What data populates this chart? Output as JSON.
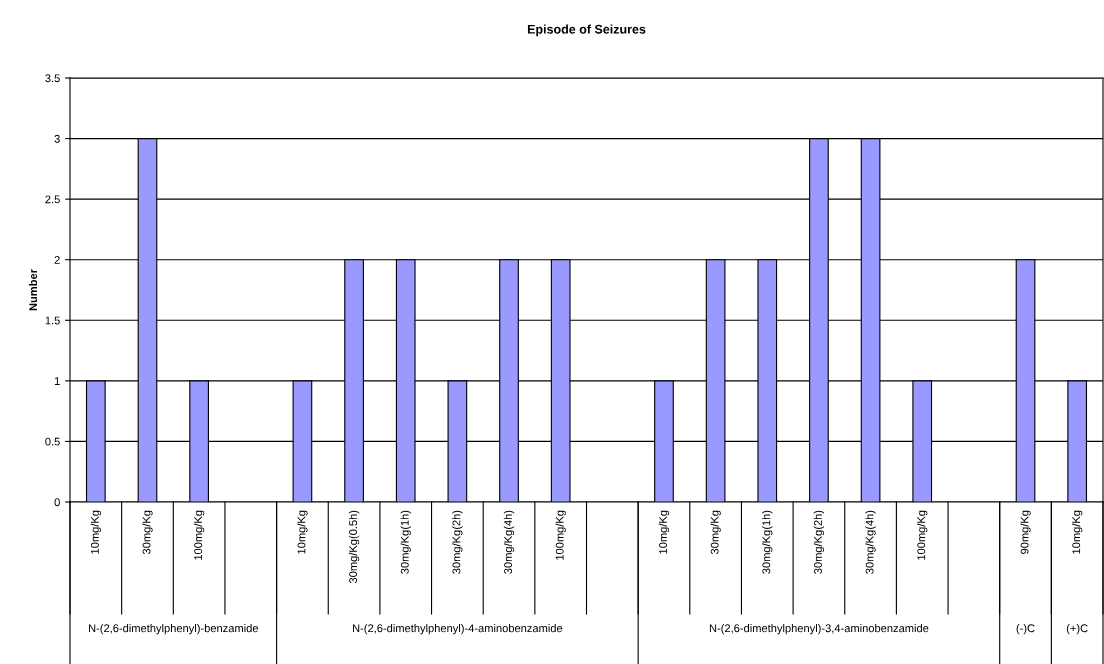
{
  "chart_data": {
    "type": "bar",
    "title": "Episode of Seizures",
    "ylabel": "Number",
    "categories": [
      "10mg/Kg",
      "30mg/Kg",
      "100mg/Kg",
      null,
      "10mg/Kg",
      "30mg/Kg(0.5h)",
      "30mg/Kg(1h)",
      "30mg/Kg(2h)",
      "30mg/Kg(4h)",
      "100mg/Kg",
      null,
      "10mg/Kg",
      "30mg/Kg",
      "30mg/Kg(1h)",
      "30mg/Kg(2h)",
      "30mg/Kg(4h)",
      "100mg/Kg",
      null,
      "90mg/Kg",
      "10mg/Kg"
    ],
    "values": [
      1,
      3,
      1,
      null,
      1,
      2,
      2,
      1,
      2,
      2,
      null,
      1,
      2,
      2,
      3,
      3,
      1,
      null,
      2,
      1
    ],
    "color": "#9999ff",
    "annotations": [
      "N-(2,6-dimethylphenyl)-benzamide",
      "N-(2,6-dimethylphenyl)-4-aminobenzamide",
      "N-(2,6-dimethylphenyl)-3,4-aminobenzamide",
      "(-)C",
      "(+)C"
    ],
    "ylim": [
      0,
      3.5
    ],
    "yticks": [
      0,
      0.5,
      1,
      1.5,
      2,
      2.5,
      3,
      3.5
    ],
    "grid": "y",
    "legend": false
  }
}
